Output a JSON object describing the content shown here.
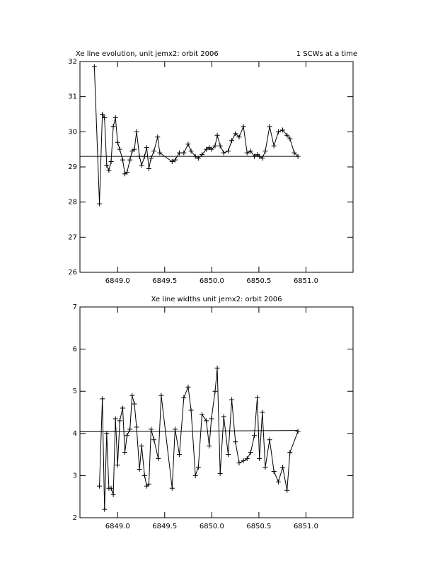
{
  "chart_data": [
    {
      "type": "line",
      "title": "Xe line evolution, unit jemx2: orbit 2006",
      "subtitle": "1 SCWs at a time",
      "color": "#000000",
      "x": [
        6848.753,
        6848.807,
        6848.838,
        6848.861,
        6848.884,
        6848.907,
        6848.931,
        6848.954,
        6848.977,
        6849.0,
        6849.023,
        6849.054,
        6849.077,
        6849.1,
        6849.131,
        6849.154,
        6849.178,
        6849.201,
        6849.232,
        6849.255,
        6849.286,
        6849.309,
        6849.332,
        6849.355,
        6849.386,
        6849.425,
        6849.448,
        6849.579,
        6849.61,
        6849.656,
        6849.703,
        6849.749,
        6849.78,
        6849.826,
        6849.857,
        6849.896,
        6849.942,
        6849.973,
        6849.996,
        6850.035,
        6850.058,
        6850.089,
        6850.127,
        6850.174,
        6850.212,
        6850.251,
        6850.29,
        6850.336,
        6850.375,
        6850.413,
        6850.452,
        6850.483,
        6850.506,
        6850.537,
        6850.568,
        6850.614,
        6850.66,
        6850.707,
        6850.753,
        6850.799,
        6850.83,
        6850.876,
        6850.915
      ],
      "values": [
        31.85,
        27.95,
        30.5,
        30.4,
        29.05,
        28.9,
        29.15,
        30.15,
        30.4,
        29.7,
        29.5,
        29.2,
        28.8,
        28.85,
        29.2,
        29.45,
        29.5,
        30.0,
        29.3,
        29.05,
        29.3,
        29.55,
        28.95,
        29.25,
        29.45,
        29.85,
        29.4,
        29.15,
        29.2,
        29.4,
        29.4,
        29.65,
        29.45,
        29.3,
        29.25,
        29.35,
        29.5,
        29.55,
        29.5,
        29.6,
        29.9,
        29.6,
        29.4,
        29.45,
        29.75,
        29.95,
        29.85,
        30.15,
        29.4,
        29.45,
        29.3,
        29.35,
        29.3,
        29.25,
        29.45,
        30.15,
        29.6,
        30.0,
        30.05,
        29.9,
        29.8,
        29.4,
        29.3
      ],
      "reference": {
        "x": [
          6848.6,
          6850.915
        ],
        "values": [
          29.3,
          29.3
        ]
      },
      "xlim": [
        6848.6,
        6851.5
      ],
      "xticks": [
        {
          "value": 6849.0,
          "label": "6849.0"
        },
        {
          "value": 6849.5,
          "label": "6849.5"
        },
        {
          "value": 6850.0,
          "label": "6850.0"
        },
        {
          "value": 6850.5,
          "label": "6850.5"
        },
        {
          "value": 6851.0,
          "label": "6851.0"
        }
      ],
      "ylim": [
        26,
        32
      ],
      "yticks": [
        26,
        27,
        28,
        29,
        30,
        31,
        32
      ]
    },
    {
      "type": "line",
      "title": "Xe line widths unit jemx2: orbit 2006",
      "color": "#000000",
      "x": [
        6848.807,
        6848.838,
        6848.861,
        6848.884,
        6848.907,
        6848.931,
        6848.954,
        6848.977,
        6849.0,
        6849.023,
        6849.054,
        6849.077,
        6849.1,
        6849.131,
        6849.154,
        6849.178,
        6849.201,
        6849.232,
        6849.255,
        6849.286,
        6849.309,
        6849.332,
        6849.355,
        6849.386,
        6849.432,
        6849.463,
        6849.579,
        6849.61,
        6849.656,
        6849.703,
        6849.749,
        6849.78,
        6849.826,
        6849.857,
        6849.896,
        6849.942,
        6849.973,
        6849.996,
        6850.035,
        6850.058,
        6850.089,
        6850.127,
        6850.174,
        6850.212,
        6850.251,
        6850.29,
        6850.336,
        6850.375,
        6850.413,
        6850.452,
        6850.483,
        6850.506,
        6850.537,
        6850.568,
        6850.614,
        6850.66,
        6850.707,
        6850.753,
        6850.799,
        6850.83,
        6850.915
      ],
      "values": [
        2.75,
        4.82,
        2.2,
        4.0,
        2.7,
        2.7,
        2.55,
        4.35,
        3.25,
        4.3,
        4.6,
        3.55,
        3.95,
        4.1,
        4.9,
        4.7,
        4.15,
        3.15,
        3.7,
        3.0,
        2.75,
        2.8,
        4.1,
        3.85,
        3.4,
        4.9,
        2.7,
        4.1,
        3.5,
        4.85,
        5.1,
        4.55,
        3.0,
        3.2,
        4.45,
        4.3,
        3.7,
        4.35,
        5.0,
        5.55,
        3.05,
        4.4,
        3.5,
        4.8,
        3.8,
        3.3,
        3.35,
        3.4,
        3.55,
        3.95,
        4.85,
        3.4,
        4.5,
        3.2,
        3.85,
        3.1,
        2.85,
        3.2,
        2.65,
        3.55,
        4.05
      ],
      "reference": {
        "x": [
          6848.6,
          6850.915
        ],
        "values": [
          4.04,
          4.07
        ]
      },
      "xlim": [
        6848.6,
        6851.5
      ],
      "xticks": [
        {
          "value": 6849.0,
          "label": "6849.0"
        },
        {
          "value": 6849.5,
          "label": "6849.5"
        },
        {
          "value": 6850.0,
          "label": "6850.0"
        },
        {
          "value": 6850.5,
          "label": "6850.5"
        },
        {
          "value": 6851.0,
          "label": "6851.0"
        }
      ],
      "ylim": [
        2,
        7
      ],
      "yticks": [
        2,
        3,
        4,
        5,
        6,
        7
      ]
    }
  ]
}
